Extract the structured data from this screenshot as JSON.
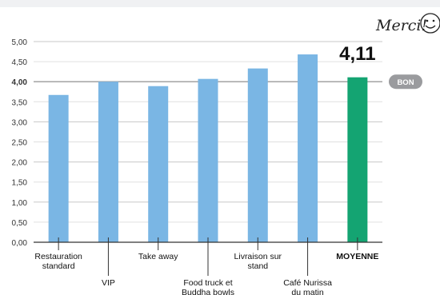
{
  "header": {
    "note": "Merci!",
    "smiley_icon": "smiley-face-icon"
  },
  "average_callout": {
    "value_text": "4,11",
    "badge_label": "BON",
    "badge_value": 4.0
  },
  "colors": {
    "bar": "#7ab6e4",
    "average_bar": "#14a472",
    "badge": "#9a9b9e",
    "axis": "#333333",
    "gridline_major": "#c8c8c8"
  },
  "chart_data": {
    "type": "bar",
    "categories": [
      [
        "Restauration",
        "standard"
      ],
      [
        "VIP"
      ],
      [
        "Take away"
      ],
      [
        "Food truck et",
        "Buddha bowls"
      ],
      [
        "Livraison sur",
        "stand"
      ],
      [
        "Café Nurissa",
        "du matin"
      ],
      [
        "MOYENNE"
      ]
    ],
    "values": [
      3.67,
      4.0,
      3.89,
      4.07,
      4.33,
      4.68,
      4.11
    ],
    "highlight_index": 6,
    "ylim": [
      0,
      5
    ],
    "yticks": [
      "0,00",
      "0,50",
      "1,00",
      "1,50",
      "2,00",
      "2,50",
      "3,00",
      "3,50",
      "4,00",
      "4,50",
      "5,00"
    ],
    "bold_ytick": "4,00",
    "grid": true,
    "title": "",
    "xlabel": "",
    "ylabel": ""
  }
}
